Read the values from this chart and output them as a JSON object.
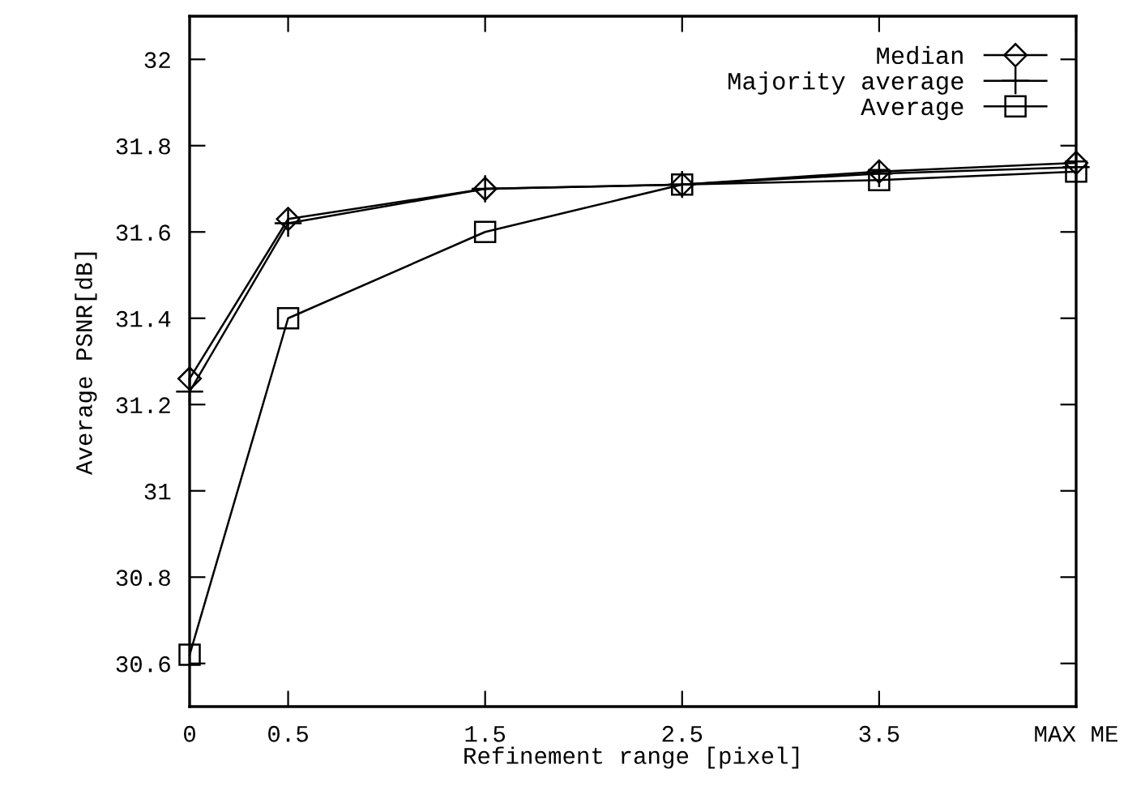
{
  "chart_data": {
    "type": "line",
    "xlabel": "Refinement range [pixel]",
    "ylabel": "Average PSNR[dB]",
    "x": [
      0,
      0.5,
      1.5,
      2.5,
      3.5,
      4.5
    ],
    "series": [
      {
        "name": "Median",
        "color": "#000000",
        "marker": "diamond",
        "values": [
          31.26,
          31.63,
          31.7,
          31.71,
          31.74,
          31.76
        ]
      },
      {
        "name": "Majority average",
        "color": "#000000",
        "marker": "plus",
        "values": [
          31.23,
          31.62,
          31.7,
          31.71,
          31.735,
          31.75
        ]
      },
      {
        "name": "Average",
        "color": "#000000",
        "marker": "square",
        "values": [
          30.62,
          31.4,
          31.6,
          31.71,
          31.72,
          31.74
        ]
      }
    ],
    "xlim": [
      0,
      4.5
    ],
    "xticks": [
      0,
      0.5,
      1.5,
      2.5,
      3.5,
      {
        "value": 4.5,
        "label": "MAX ME"
      }
    ],
    "ylim": [
      30.5,
      32.1
    ],
    "yticks": [
      30.6,
      30.8,
      31,
      31.2,
      31.4,
      31.6,
      31.8,
      32
    ],
    "grid": false,
    "legend": "top right",
    "line_style": "solid"
  }
}
